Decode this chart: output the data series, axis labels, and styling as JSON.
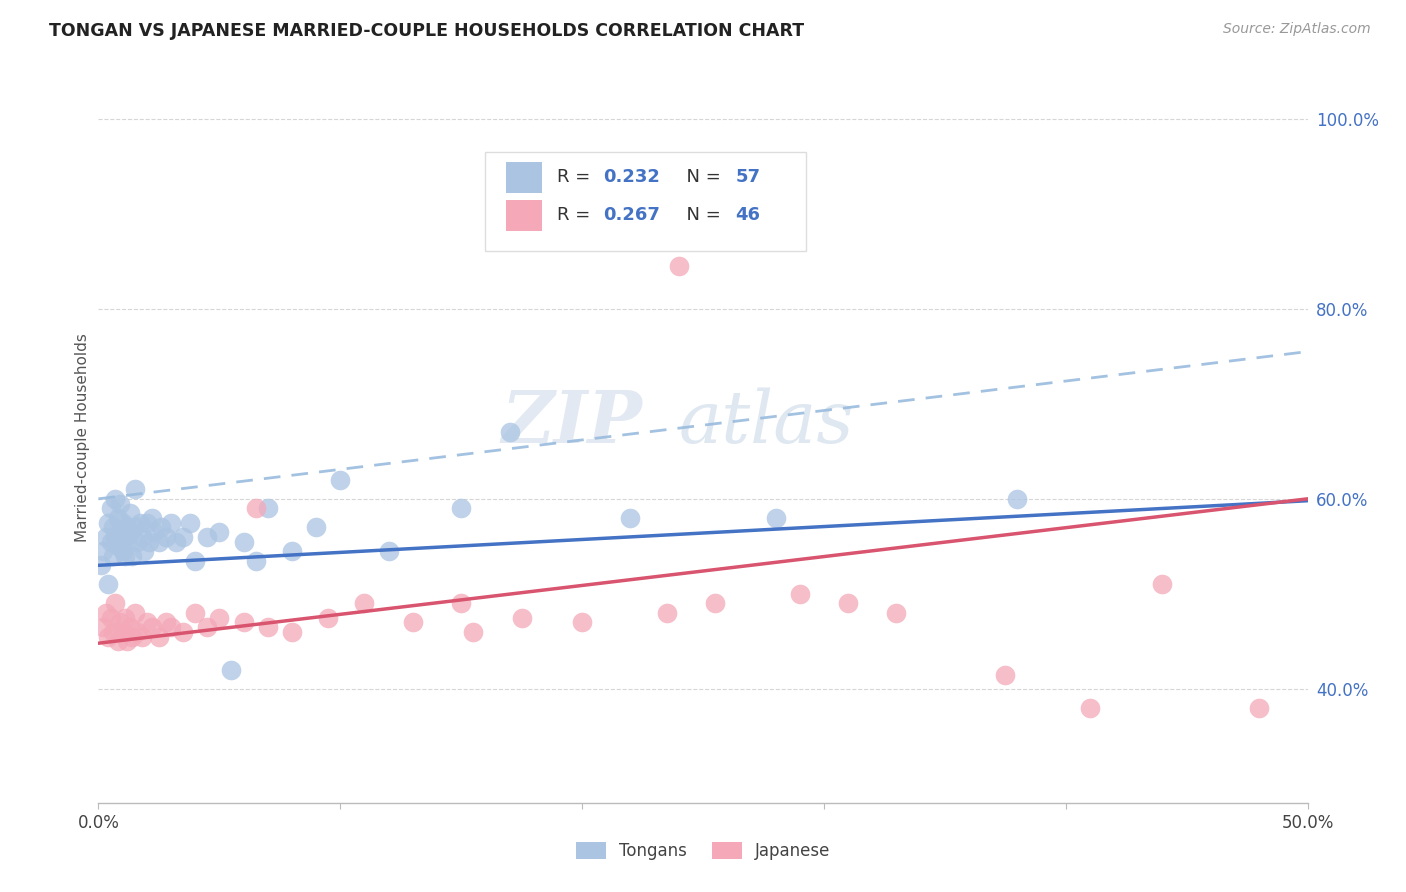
{
  "title": "TONGAN VS JAPANESE MARRIED-COUPLE HOUSEHOLDS CORRELATION CHART",
  "source": "Source: ZipAtlas.com",
  "ylabel": "Married-couple Households",
  "xmin": 0.0,
  "xmax": 0.5,
  "ymin": 0.28,
  "ymax": 1.05,
  "x_ticks": [
    0.0,
    0.1,
    0.2,
    0.3,
    0.4,
    0.5
  ],
  "x_tick_labels": [
    "0.0%",
    "",
    "",
    "",
    "",
    "50.0%"
  ],
  "y_ticks": [
    0.4,
    0.6,
    0.8,
    1.0
  ],
  "y_tick_labels": [
    "40.0%",
    "60.0%",
    "80.0%",
    "100.0%"
  ],
  "grid_color": "#cccccc",
  "background_color": "#ffffff",
  "tongan_color": "#aac4e2",
  "japanese_color": "#f4a8b8",
  "tongan_line_color": "#4472c4",
  "japanese_line_color": "#d9546e",
  "dashed_line_color": "#99bbdd",
  "tongan_R": "0.232",
  "tongan_N": "57",
  "japanese_R": "0.267",
  "japanese_N": "46",
  "legend_label1": "Tongans",
  "legend_label2": "Japanese",
  "watermark_zip": "ZIP",
  "watermark_atlas": "atlas",
  "tongan_line_x0": 0.0,
  "tongan_line_y0": 0.53,
  "tongan_line_x1": 0.5,
  "tongan_line_y1": 0.598,
  "japanese_line_x0": 0.0,
  "japanese_line_y0": 0.448,
  "japanese_line_x1": 0.5,
  "japanese_line_y1": 0.6,
  "dashed_line_x0": 0.0,
  "dashed_line_y0": 0.6,
  "dashed_line_x1": 0.5,
  "dashed_line_y1": 0.755
}
